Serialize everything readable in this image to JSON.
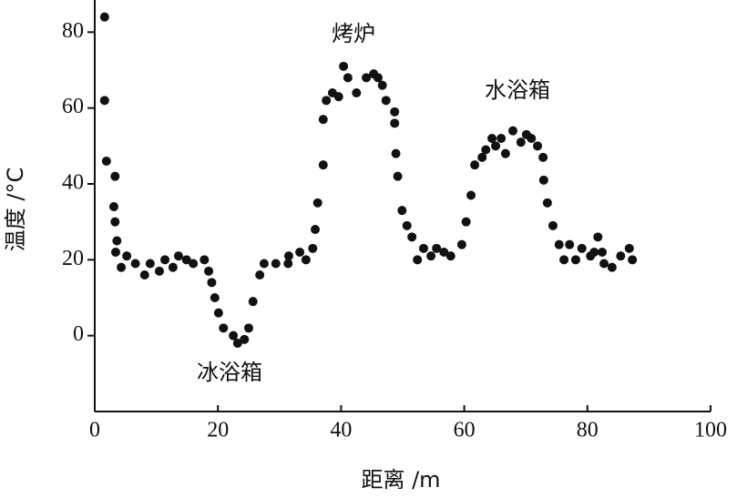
{
  "chart_data": {
    "type": "scatter",
    "x_label": "距离 /m",
    "y_label": "温度 /°C",
    "annotations": [
      "烤炉",
      "水浴箱",
      "冰浴箱"
    ],
    "color": "#111111",
    "xlim": [
      0,
      100
    ],
    "xticks": [
      0,
      20,
      40,
      60,
      80,
      100
    ],
    "ylim": [
      -20,
      88
    ],
    "yticks": [
      0,
      20,
      40,
      60,
      80
    ],
    "x": [
      1.6,
      1.6,
      1.9,
      3.3,
      3.1,
      3.3,
      3.6,
      3.4,
      4.3,
      5.2,
      6.6,
      8.1,
      9.0,
      10.5,
      11.4,
      12.7,
      13.6,
      14.9,
      16.0,
      17.8,
      18.5,
      19.0,
      19.5,
      20.1,
      20.9,
      22.5,
      23.2,
      24.3,
      25.0,
      25.7,
      26.8,
      27.5,
      29.4,
      31.4,
      31.5,
      33.3,
      34.3,
      35.4,
      35.8,
      36.2,
      37.1,
      37.1,
      37.6,
      38.6,
      39.6,
      40.4,
      41.1,
      42.5,
      44.1,
      45.3,
      46.0,
      46.7,
      47.3,
      48.7,
      48.7,
      48.9,
      49.2,
      49.9,
      50.7,
      51.5,
      52.4,
      53.4,
      54.6,
      55.5,
      56.7,
      57.8,
      59.6,
      60.3,
      61.1,
      61.7,
      62.9,
      63.5,
      64.5,
      65.1,
      66.0,
      66.7,
      67.9,
      69.2,
      70.1,
      70.9,
      71.9,
      72.8,
      72.9,
      73.5,
      74.4,
      75.4,
      76.2,
      77.1,
      78.1,
      79.1,
      80.5,
      81.1,
      81.7,
      82.4,
      82.7,
      84.0,
      85.4,
      86.8,
      87.3
    ],
    "values": [
      84,
      62,
      46,
      42,
      34,
      30,
      25,
      22,
      18,
      21,
      19,
      16,
      19,
      17,
      20,
      18,
      21,
      20,
      19,
      20,
      17,
      14,
      10,
      6,
      2,
      0,
      -2,
      -1,
      2,
      9,
      16,
      19,
      19,
      19,
      21,
      22,
      20,
      23,
      28,
      35,
      45,
      57,
      62,
      64,
      63,
      71,
      68,
      64,
      68,
      69,
      68,
      66,
      62,
      59,
      56,
      48,
      42,
      33,
      29,
      26,
      20,
      23,
      21,
      23,
      22,
      21,
      24,
      30,
      37,
      45,
      47,
      49,
      52,
      50,
      52,
      48,
      54,
      51,
      53,
      52,
      50,
      47,
      41,
      35,
      29,
      24,
      20,
      24,
      20,
      23,
      21,
      22,
      26,
      22,
      19,
      18,
      21,
      23,
      20
    ]
  }
}
